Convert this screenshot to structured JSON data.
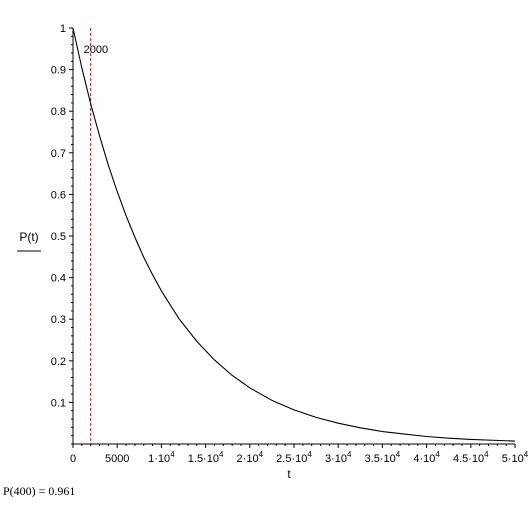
{
  "chart_data": {
    "type": "line",
    "title": "",
    "xlabel": "t",
    "ylabel": "P(t)",
    "xlim": [
      0,
      50000
    ],
    "ylim": [
      0,
      1
    ],
    "x_ticks": [
      {
        "value": 0,
        "label": "0",
        "sup": ""
      },
      {
        "value": 5000,
        "label": "5000",
        "sup": ""
      },
      {
        "value": 10000,
        "label": "1·10",
        "sup": "4"
      },
      {
        "value": 15000,
        "label": "1.5·10",
        "sup": "4"
      },
      {
        "value": 20000,
        "label": "2·10",
        "sup": "4"
      },
      {
        "value": 25000,
        "label": "2.5·10",
        "sup": "4"
      },
      {
        "value": 30000,
        "label": "3·10",
        "sup": "4"
      },
      {
        "value": 35000,
        "label": "3.5·10",
        "sup": "4"
      },
      {
        "value": 40000,
        "label": "4·10",
        "sup": "4"
      },
      {
        "value": 45000,
        "label": "4.5·10",
        "sup": "4"
      },
      {
        "value": 50000,
        "label": "5·10",
        "sup": "4"
      }
    ],
    "y_ticks": [
      {
        "value": 0.1,
        "label": "0.1"
      },
      {
        "value": 0.2,
        "label": "0.2"
      },
      {
        "value": 0.3,
        "label": "0.3"
      },
      {
        "value": 0.4,
        "label": "0.4"
      },
      {
        "value": 0.5,
        "label": "0.5"
      },
      {
        "value": 0.6,
        "label": "0.6"
      },
      {
        "value": 0.7,
        "label": "0.7"
      },
      {
        "value": 0.8,
        "label": "0.8"
      },
      {
        "value": 0.9,
        "label": "0.9"
      },
      {
        "value": 1,
        "label": "1"
      }
    ],
    "series": [
      {
        "color": "#000000",
        "x": [
          0,
          1000,
          2000,
          3000,
          4000,
          5000,
          6000,
          7000,
          8000,
          9000,
          10000,
          12000,
          14000,
          16000,
          18000,
          20000,
          22500,
          25000,
          27500,
          30000,
          32500,
          35000,
          37500,
          40000,
          42500,
          45000,
          47500,
          50000
        ],
        "y": [
          1.0,
          0.904,
          0.818,
          0.741,
          0.67,
          0.607,
          0.549,
          0.497,
          0.449,
          0.407,
          0.368,
          0.301,
          0.247,
          0.202,
          0.165,
          0.135,
          0.105,
          0.082,
          0.064,
          0.05,
          0.039,
          0.03,
          0.024,
          0.018,
          0.014,
          0.011,
          0.009,
          0.007
        ]
      }
    ],
    "annotations": [
      {
        "type": "vline",
        "x": 2000,
        "label": "2000",
        "color": "#cc0000",
        "style": "dashed"
      }
    ],
    "grid": false
  },
  "result_text": "P(400) = 0.961"
}
